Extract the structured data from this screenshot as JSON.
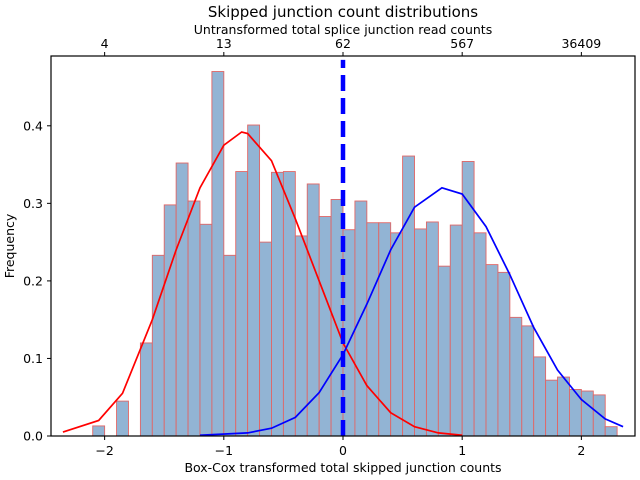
{
  "chart_data": {
    "type": "bar",
    "title": "Skipped junction count distributions",
    "top_axis_label": "Untransformed total splice junction read counts",
    "xlabel": "Box-Cox transformed total skipped junction counts",
    "ylabel": "Frequency",
    "xlim": [
      -2.45,
      2.45
    ],
    "ylim": [
      0,
      0.49
    ],
    "x_ticks": [
      -2,
      -1,
      0,
      1,
      2
    ],
    "x_tick_labels": [
      "−2",
      "−1",
      "0",
      "1",
      "2"
    ],
    "y_ticks": [
      0.0,
      0.1,
      0.2,
      0.3,
      0.4
    ],
    "y_tick_labels": [
      "0.0",
      "0.1",
      "0.2",
      "0.3",
      "0.4"
    ],
    "top_ticks": [
      -2,
      -1,
      0,
      1,
      2
    ],
    "top_tick_labels": [
      "4",
      "13",
      "62",
      "567",
      "36409"
    ],
    "bar_color": "#92b4d4",
    "bar_edge_color": "#e06666",
    "histogram": {
      "bins": [
        {
          "x0": -2.1,
          "x1": -2.0,
          "value": 0.013
        },
        {
          "x0": -1.9,
          "x1": -1.8,
          "value": 0.045
        },
        {
          "x0": -1.7,
          "x1": -1.6,
          "value": 0.12
        },
        {
          "x0": -1.6,
          "x1": -1.5,
          "value": 0.233
        },
        {
          "x0": -1.5,
          "x1": -1.4,
          "value": 0.298
        },
        {
          "x0": -1.4,
          "x1": -1.3,
          "value": 0.352
        },
        {
          "x0": -1.3,
          "x1": -1.2,
          "value": 0.303
        },
        {
          "x0": -1.2,
          "x1": -1.1,
          "value": 0.273
        },
        {
          "x0": -1.1,
          "x1": -1.0,
          "value": 0.47
        },
        {
          "x0": -1.0,
          "x1": -0.9,
          "value": 0.233
        },
        {
          "x0": -0.9,
          "x1": -0.8,
          "value": 0.341
        },
        {
          "x0": -0.8,
          "x1": -0.7,
          "value": 0.401
        },
        {
          "x0": -0.7,
          "x1": -0.6,
          "value": 0.25
        },
        {
          "x0": -0.6,
          "x1": -0.5,
          "value": 0.34
        },
        {
          "x0": -0.5,
          "x1": -0.4,
          "value": 0.341
        },
        {
          "x0": -0.4,
          "x1": -0.3,
          "value": 0.258
        },
        {
          "x0": -0.3,
          "x1": -0.2,
          "value": 0.325
        },
        {
          "x0": -0.2,
          "x1": -0.1,
          "value": 0.283
        },
        {
          "x0": -0.1,
          "x1": 0.0,
          "value": 0.305
        },
        {
          "x0": 0.0,
          "x1": 0.1,
          "value": 0.266
        },
        {
          "x0": 0.1,
          "x1": 0.2,
          "value": 0.303
        },
        {
          "x0": 0.2,
          "x1": 0.3,
          "value": 0.275
        },
        {
          "x0": 0.3,
          "x1": 0.4,
          "value": 0.275
        },
        {
          "x0": 0.4,
          "x1": 0.5,
          "value": 0.262
        },
        {
          "x0": 0.5,
          "x1": 0.6,
          "value": 0.361
        },
        {
          "x0": 0.6,
          "x1": 0.7,
          "value": 0.267
        },
        {
          "x0": 0.7,
          "x1": 0.8,
          "value": 0.276
        },
        {
          "x0": 0.8,
          "x1": 0.9,
          "value": 0.219
        },
        {
          "x0": 0.9,
          "x1": 1.0,
          "value": 0.272
        },
        {
          "x0": 1.0,
          "x1": 1.1,
          "value": 0.354
        },
        {
          "x0": 1.1,
          "x1": 1.2,
          "value": 0.262
        },
        {
          "x0": 1.2,
          "x1": 1.3,
          "value": 0.221
        },
        {
          "x0": 1.3,
          "x1": 1.4,
          "value": 0.211
        },
        {
          "x0": 1.4,
          "x1": 1.5,
          "value": 0.153
        },
        {
          "x0": 1.5,
          "x1": 1.6,
          "value": 0.142
        },
        {
          "x0": 1.6,
          "x1": 1.7,
          "value": 0.102
        },
        {
          "x0": 1.7,
          "x1": 1.8,
          "value": 0.072
        },
        {
          "x0": 1.8,
          "x1": 1.9,
          "value": 0.076
        },
        {
          "x0": 1.9,
          "x1": 2.0,
          "value": 0.06
        },
        {
          "x0": 2.0,
          "x1": 2.1,
          "value": 0.058
        },
        {
          "x0": 2.1,
          "x1": 2.2,
          "value": 0.053
        },
        {
          "x0": 2.2,
          "x1": 2.3,
          "value": 0.012
        }
      ]
    },
    "series": [
      {
        "type": "line",
        "color": "#ff0000",
        "x": [
          -2.35,
          -2.05,
          -1.85,
          -1.6,
          -1.4,
          -1.2,
          -1.0,
          -0.85,
          -0.8,
          -0.6,
          -0.4,
          -0.2,
          0.0,
          0.2,
          0.4,
          0.6,
          0.8,
          1.0
        ],
        "y": [
          0.005,
          0.02,
          0.055,
          0.15,
          0.24,
          0.32,
          0.375,
          0.392,
          0.39,
          0.355,
          0.28,
          0.2,
          0.12,
          0.065,
          0.03,
          0.012,
          0.004,
          0.001
        ]
      },
      {
        "type": "line",
        "color": "#0000ff",
        "x": [
          -1.2,
          -0.8,
          -0.6,
          -0.4,
          -0.2,
          0.0,
          0.2,
          0.4,
          0.6,
          0.83,
          1.0,
          1.2,
          1.4,
          1.6,
          1.8,
          2.0,
          2.2,
          2.35
        ],
        "y": [
          0.001,
          0.004,
          0.01,
          0.024,
          0.056,
          0.105,
          0.17,
          0.24,
          0.295,
          0.32,
          0.312,
          0.27,
          0.208,
          0.14,
          0.085,
          0.047,
          0.022,
          0.012
        ]
      },
      {
        "type": "vline",
        "color": "#0000ff",
        "x": 0.0,
        "y_range": [
          0.0,
          0.485
        ],
        "dashed": true
      }
    ]
  }
}
